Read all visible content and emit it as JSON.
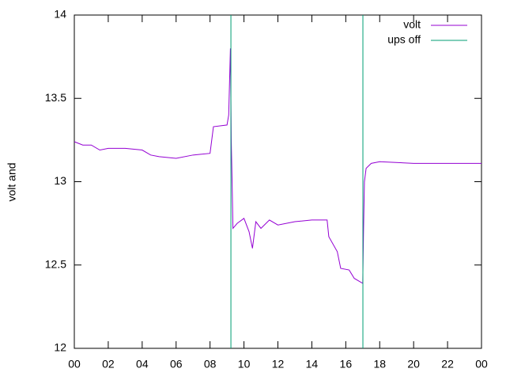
{
  "chart_data": {
    "type": "line",
    "ylabel": "volt and",
    "xlim": [
      0,
      24
    ],
    "xticks": [
      {
        "value": 0,
        "label": "00"
      },
      {
        "value": 2,
        "label": "02"
      },
      {
        "value": 4,
        "label": "04"
      },
      {
        "value": 6,
        "label": "06"
      },
      {
        "value": 8,
        "label": "08"
      },
      10,
      12,
      14,
      16,
      18,
      20,
      22,
      {
        "value": 24,
        "label": "00"
      }
    ],
    "ylim": [
      12,
      14
    ],
    "yticks": [
      12,
      {
        "value": 12.5,
        "label": "12.5"
      },
      13,
      {
        "value": 13.5,
        "label": "13.5"
      },
      14
    ],
    "legend": "top-right",
    "series": [
      {
        "name": "volt",
        "color": "#9400d3",
        "style": "lines",
        "x": [
          0,
          0.5,
          1,
          1.5,
          2,
          3,
          4,
          4.5,
          5,
          6,
          7,
          8,
          8.2,
          9,
          9.1,
          9.2,
          9.25,
          9.3,
          9.35,
          9.6,
          10,
          10.3,
          10.5,
          10.7,
          11,
          11.5,
          12,
          13,
          14,
          14.9,
          15,
          15.5,
          15.7,
          16.2,
          16.5,
          17,
          17.05,
          17.1,
          17.2,
          17.5,
          18,
          20,
          22,
          24
        ],
        "values": [
          13.24,
          13.22,
          13.22,
          13.19,
          13.2,
          13.2,
          13.19,
          13.16,
          13.15,
          13.14,
          13.16,
          13.17,
          13.33,
          13.34,
          13.4,
          13.8,
          13.25,
          13.0,
          12.72,
          12.75,
          12.78,
          12.7,
          12.6,
          12.76,
          12.72,
          12.77,
          12.74,
          12.76,
          12.77,
          12.77,
          12.67,
          12.58,
          12.48,
          12.47,
          12.42,
          12.39,
          12.72,
          13.0,
          13.08,
          13.11,
          13.12,
          13.11,
          13.11,
          13.11
        ]
      },
      {
        "name": "ups off",
        "color": "#009e73",
        "style": "impulses",
        "x": [
          9.23,
          17.01
        ],
        "values": [
          14,
          14
        ]
      }
    ]
  }
}
